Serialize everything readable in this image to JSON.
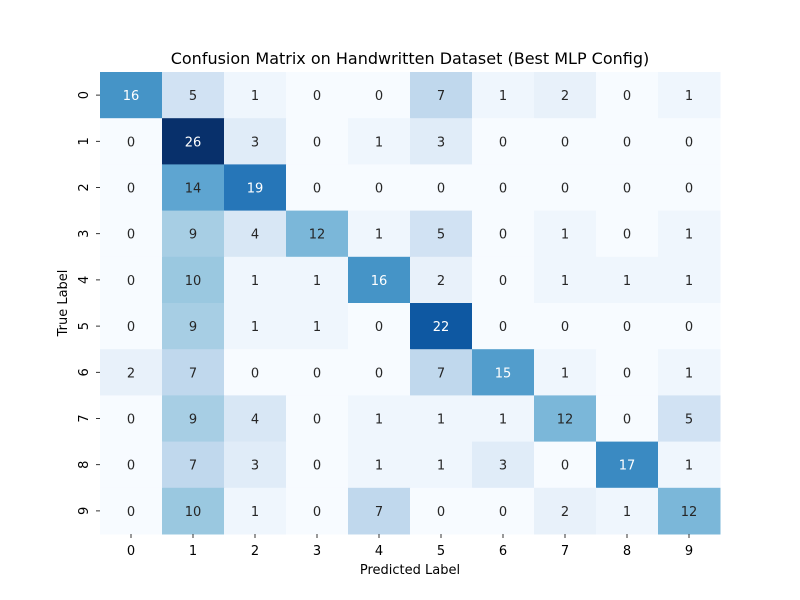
{
  "chart_data": {
    "type": "heatmap",
    "title": "Confusion Matrix on Handwritten Dataset (Best MLP Config)",
    "xlabel": "Predicted Label",
    "ylabel": "True Label",
    "x_categories": [
      "0",
      "1",
      "2",
      "3",
      "4",
      "5",
      "6",
      "7",
      "8",
      "9"
    ],
    "y_categories": [
      "0",
      "1",
      "2",
      "3",
      "4",
      "5",
      "6",
      "7",
      "8",
      "9"
    ],
    "values": [
      [
        16,
        5,
        1,
        0,
        0,
        7,
        1,
        2,
        0,
        1
      ],
      [
        0,
        26,
        3,
        0,
        1,
        3,
        0,
        0,
        0,
        0
      ],
      [
        0,
        14,
        19,
        0,
        0,
        0,
        0,
        0,
        0,
        0
      ],
      [
        0,
        9,
        4,
        12,
        1,
        5,
        0,
        1,
        0,
        1
      ],
      [
        0,
        10,
        1,
        1,
        16,
        2,
        0,
        1,
        1,
        1
      ],
      [
        0,
        9,
        1,
        1,
        0,
        22,
        0,
        0,
        0,
        0
      ],
      [
        2,
        7,
        0,
        0,
        0,
        7,
        15,
        1,
        0,
        1
      ],
      [
        0,
        9,
        4,
        0,
        1,
        1,
        1,
        12,
        0,
        5
      ],
      [
        0,
        7,
        3,
        0,
        1,
        1,
        3,
        0,
        17,
        1
      ],
      [
        0,
        10,
        1,
        0,
        7,
        0,
        0,
        2,
        1,
        12
      ]
    ],
    "colormap": "Blues",
    "vmin": 0,
    "vmax": 26,
    "colorbar": false,
    "annotations": true
  }
}
